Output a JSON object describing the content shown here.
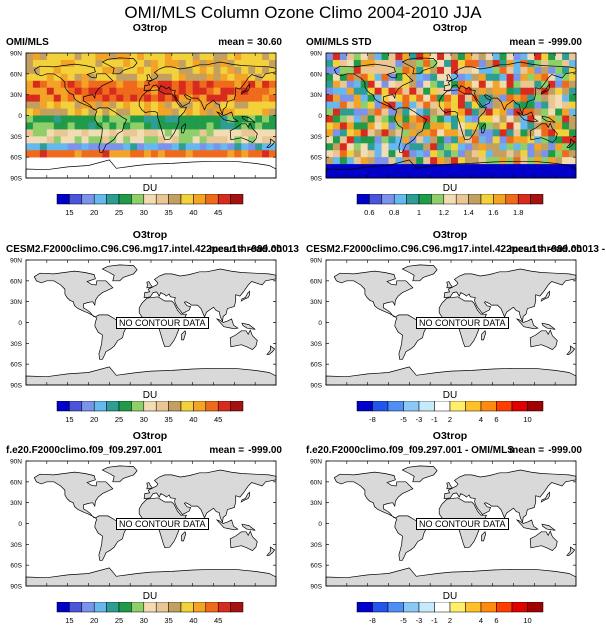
{
  "title": "OMI/MLS Column Ozone Climo 2004-2010 JJA",
  "lat_labels": [
    "90N",
    "60N",
    "30N",
    "0",
    "30S",
    "60S",
    "90S"
  ],
  "colors": {
    "land": "#d9d9d9",
    "coast": "#000000",
    "scale_a": [
      "#0000c8",
      "#4a55dc",
      "#7b93ea",
      "#67b8ee",
      "#2e9e95",
      "#1f9b4a",
      "#8fcf6a",
      "#f2dcb3",
      "#e9c693",
      "#c3a060",
      "#f3d13b",
      "#f3a326",
      "#ef6a1a",
      "#d72b20",
      "#a51010"
    ],
    "scale_b": [
      "#0000cc",
      "#2255ee",
      "#4f8ff5",
      "#8ac8f5",
      "#c6e9fb",
      "#ffffff",
      "#ffef6b",
      "#ffc02a",
      "#ff8a12",
      "#ff3d00",
      "#e00000",
      "#a00000"
    ]
  },
  "panels": [
    {
      "subtitle": "O3trop",
      "label": "OMI/MLS",
      "mean_label": "mean =",
      "mean_value": "30.60",
      "units": "DU",
      "field": "ozone",
      "no_data_text": "",
      "ticks": [
        "15",
        "20",
        "25",
        "30",
        "35",
        "40",
        "45"
      ],
      "scale": "a"
    },
    {
      "subtitle": "O3trop",
      "label": "OMI/MLS STD",
      "mean_label": "mean =",
      "mean_value": "-999.00",
      "units": "DU",
      "field": "std",
      "no_data_text": "",
      "ticks": [
        "0.6",
        "0.8",
        "1",
        "1.2",
        "1.4",
        "1.6",
        "1.8"
      ],
      "scale": "a"
    },
    {
      "subtitle": "O3trop",
      "label": "CESM2.F2000climo.C96.C96.mg17.intel.422pes.1thread.ch013",
      "mean_label": "mean =",
      "mean_value": "-999.00",
      "units": "DU",
      "field": "none",
      "no_data_text": "NO CONTOUR DATA",
      "ticks": [
        "15",
        "20",
        "25",
        "30",
        "35",
        "40",
        "45"
      ],
      "scale": "a"
    },
    {
      "subtitle": "O3trop",
      "label": "CESM2.F2000climo.C96.C96.mg17.intel.422pes.1thread.ch013 - OMI",
      "mean_label": "mean =",
      "mean_value": "-999.00",
      "units": "DU",
      "field": "none",
      "no_data_text": "NO CONTOUR DATA",
      "ticks": [
        "-8",
        "-5",
        "-3",
        "-1",
        "2",
        "4",
        "6",
        "10"
      ],
      "scale": "b"
    },
    {
      "subtitle": "O3trop",
      "label": "f.e20.F2000climo.f09_f09.297.001",
      "mean_label": "mean =",
      "mean_value": "-999.00",
      "units": "DU",
      "field": "none",
      "no_data_text": "NO CONTOUR DATA",
      "ticks": [
        "15",
        "20",
        "25",
        "30",
        "35",
        "40",
        "45"
      ],
      "scale": "a"
    },
    {
      "subtitle": "O3trop",
      "label": "f.e20.F2000climo.f09_f09.297.001 - OMI/MLS",
      "mean_label": "mean =",
      "mean_value": "-999.00",
      "units": "DU",
      "field": "none",
      "no_data_text": "NO CONTOUR DATA",
      "ticks": [
        "-8",
        "-5",
        "-3",
        "-1",
        "2",
        "4",
        "6",
        "10"
      ],
      "scale": "b"
    }
  ],
  "chart_data": [
    {
      "type": "heatmap",
      "title": "O3trop",
      "panel_label": "OMI/MLS",
      "units": "DU",
      "mean": 30.6,
      "levels": [
        15,
        20,
        25,
        30,
        35,
        40,
        45
      ],
      "y_ticks": [
        "90N",
        "60N",
        "30N",
        "0",
        "30S",
        "60S",
        "90S"
      ]
    },
    {
      "type": "heatmap",
      "title": "O3trop",
      "panel_label": "OMI/MLS STD",
      "units": "DU",
      "mean": -999.0,
      "levels": [
        0.6,
        0.8,
        1,
        1.2,
        1.4,
        1.6,
        1.8
      ],
      "y_ticks": [
        "90N",
        "60N",
        "30N",
        "0",
        "30S",
        "60S",
        "90S"
      ]
    },
    {
      "type": "heatmap",
      "title": "O3trop",
      "panel_label": "CESM2.F2000climo.C96.C96.mg17.intel.422pes.1thread.ch013",
      "units": "DU",
      "mean": -999.0,
      "levels": [
        15,
        20,
        25,
        30,
        35,
        40,
        45
      ],
      "annotation": "NO CONTOUR DATA"
    },
    {
      "type": "heatmap",
      "title": "O3trop",
      "panel_label": "CESM2.F2000climo.C96.C96.mg17.intel.422pes.1thread.ch013 - OMI",
      "units": "DU",
      "mean": -999.0,
      "levels": [
        -8,
        -5,
        -3,
        -1,
        2,
        4,
        6,
        10
      ],
      "annotation": "NO CONTOUR DATA"
    },
    {
      "type": "heatmap",
      "title": "O3trop",
      "panel_label": "f.e20.F2000climo.f09_f09.297.001",
      "units": "DU",
      "mean": -999.0,
      "levels": [
        15,
        20,
        25,
        30,
        35,
        40,
        45
      ],
      "annotation": "NO CONTOUR DATA"
    },
    {
      "type": "heatmap",
      "title": "O3trop",
      "panel_label": "f.e20.F2000climo.f09_f09.297.001 - OMI/MLS",
      "units": "DU",
      "mean": -999.0,
      "levels": [
        -8,
        -5,
        -3,
        -1,
        2,
        4,
        6,
        10
      ],
      "annotation": "NO CONTOUR DATA"
    }
  ]
}
